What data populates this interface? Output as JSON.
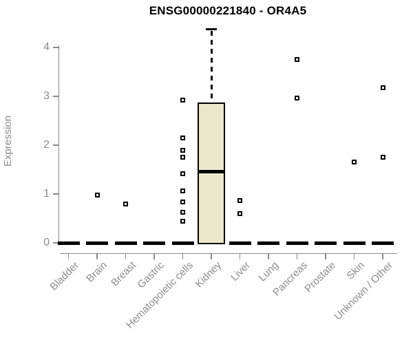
{
  "page": {
    "background": "#ffffff"
  },
  "chart_data": {
    "type": "boxplot",
    "title": "ENSG00000221840 - OR4A5",
    "ylabel": "Expression",
    "xlabel": "",
    "ylim": [
      0,
      4.4
    ],
    "yticks": [
      0,
      1,
      2,
      3,
      4
    ],
    "grid": false,
    "legend": "none",
    "categories": [
      "Bladder",
      "Brain",
      "Breast",
      "Gastric",
      "Hematopoietic cells",
      "Kidney",
      "Liver",
      "Lung",
      "Pancreas",
      "Prostate",
      "Skin",
      "Unknown / Other"
    ],
    "boxes": [
      {
        "category": "Bladder",
        "q1": 0,
        "median": 0,
        "q3": 0,
        "whisker_low": 0,
        "whisker_high": 0,
        "outliers": []
      },
      {
        "category": "Brain",
        "q1": 0,
        "median": 0,
        "q3": 0,
        "whisker_low": 0,
        "whisker_high": 0,
        "outliers": [
          0.98
        ]
      },
      {
        "category": "Breast",
        "q1": 0,
        "median": 0,
        "q3": 0,
        "whisker_low": 0,
        "whisker_high": 0,
        "outliers": [
          0.79
        ]
      },
      {
        "category": "Gastric",
        "q1": 0,
        "median": 0,
        "q3": 0,
        "whisker_low": 0,
        "whisker_high": 0,
        "outliers": []
      },
      {
        "category": "Hematopoietic cells",
        "q1": 0,
        "median": 0,
        "q3": 0,
        "whisker_low": 0,
        "whisker_high": 0,
        "outliers": [
          2.92,
          2.15,
          1.89,
          1.76,
          1.42,
          1.06,
          0.84,
          0.62,
          0.45
        ]
      },
      {
        "category": "Kidney",
        "q1": 0,
        "median": 1.46,
        "q3": 2.84,
        "whisker_low": 0,
        "whisker_high": 4.37,
        "outliers": []
      },
      {
        "category": "Liver",
        "q1": 0,
        "median": 0,
        "q3": 0,
        "whisker_low": 0,
        "whisker_high": 0,
        "outliers": [
          0.86,
          0.6
        ]
      },
      {
        "category": "Lung",
        "q1": 0,
        "median": 0,
        "q3": 0,
        "whisker_low": 0,
        "whisker_high": 0,
        "outliers": []
      },
      {
        "category": "Pancreas",
        "q1": 0,
        "median": 0,
        "q3": 0,
        "whisker_low": 0,
        "whisker_high": 0,
        "outliers": [
          3.75,
          2.97
        ]
      },
      {
        "category": "Prostate",
        "q1": 0,
        "median": 0,
        "q3": 0,
        "whisker_low": 0,
        "whisker_high": 0,
        "outliers": []
      },
      {
        "category": "Skin",
        "q1": 0,
        "median": 0,
        "q3": 0,
        "whisker_low": 0,
        "whisker_high": 0,
        "outliers": [
          1.66
        ]
      },
      {
        "category": "Unknown / Other",
        "q1": 0,
        "median": 0,
        "q3": 0,
        "whisker_low": 0,
        "whisker_high": 0,
        "outliers": [
          3.18,
          1.75
        ]
      }
    ],
    "colors": {
      "box_fill": "#ECE8CC",
      "box_border": "#000000",
      "median": "#000000",
      "axis": "#888888",
      "tick_label": "#8C8C8C",
      "title": "#000000",
      "background": "#FFFFFF"
    }
  }
}
